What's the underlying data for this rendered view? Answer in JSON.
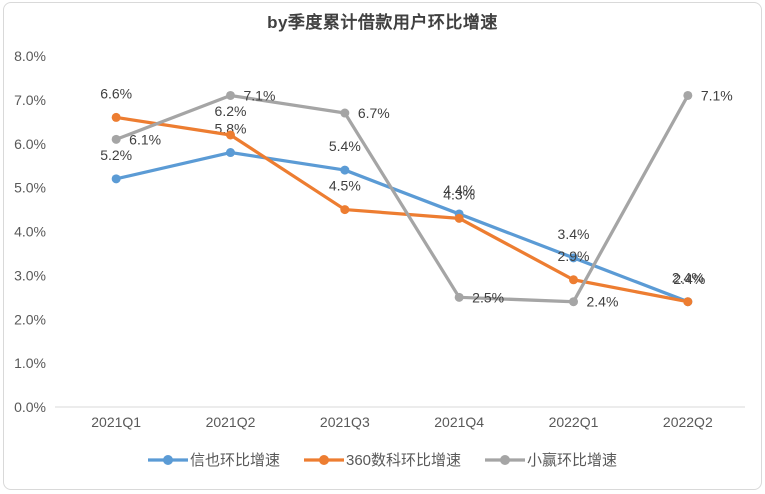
{
  "title": "by季度累计借款用户环比增速",
  "chart_data": {
    "type": "line",
    "title": "by季度累计借款用户环比增速",
    "categories": [
      "2021Q1",
      "2021Q2",
      "2021Q3",
      "2021Q4",
      "2022Q1",
      "2022Q2"
    ],
    "series": [
      {
        "name": "信也环比增速",
        "color": "#5B9BD5",
        "values": [
          5.2,
          5.8,
          5.4,
          4.4,
          3.4,
          2.4
        ],
        "labels": [
          "5.2%",
          "5.8%",
          "5.4%",
          "4.4%",
          "3.4%",
          "2.4%"
        ],
        "label_placement": [
          "above",
          "above",
          "above",
          "above",
          "above",
          "above"
        ]
      },
      {
        "name": "360数科环比增速",
        "color": "#ED7D31",
        "values": [
          6.6,
          6.2,
          4.5,
          4.3,
          2.9,
          2.4
        ],
        "labels": [
          "6.6%",
          "6.2%",
          "4.5%",
          "4.3%",
          "2.9%",
          "2.4%"
        ],
        "label_placement": [
          "above",
          "above",
          "above",
          "above",
          "above",
          "above"
        ]
      },
      {
        "name": "小赢环比增速",
        "color": "#A5A5A5",
        "values": [
          6.1,
          7.1,
          6.7,
          2.5,
          2.4,
          7.1
        ],
        "labels": [
          "6.1%",
          "7.1%",
          "6.7%",
          "2.5%",
          "2.4%",
          "7.1%"
        ],
        "label_placement": [
          "right",
          "right",
          "right",
          "right",
          "right",
          "right"
        ]
      }
    ],
    "y_axis": {
      "min": 0,
      "max": 8,
      "step": 1,
      "tick_labels": [
        "0.0%",
        "1.0%",
        "2.0%",
        "3.0%",
        "4.0%",
        "5.0%",
        "6.0%",
        "7.0%",
        "8.0%"
      ]
    },
    "x_axis": {
      "tick_labels": [
        "2021Q1",
        "2021Q2",
        "2021Q3",
        "2021Q4",
        "2022Q1",
        "2022Q2"
      ]
    },
    "legend_position": "bottom",
    "grid": false,
    "markers": true
  },
  "colors": {
    "series_blue": "#5B9BD5",
    "series_orange": "#ED7D31",
    "series_gray": "#A5A5A5",
    "axis_line": "#D9D9D9",
    "axis_text": "#595959",
    "data_label_text": "#404040",
    "title_text": "#404040",
    "frame_border": "#D9D9D9",
    "background": "#FFFFFF"
  }
}
